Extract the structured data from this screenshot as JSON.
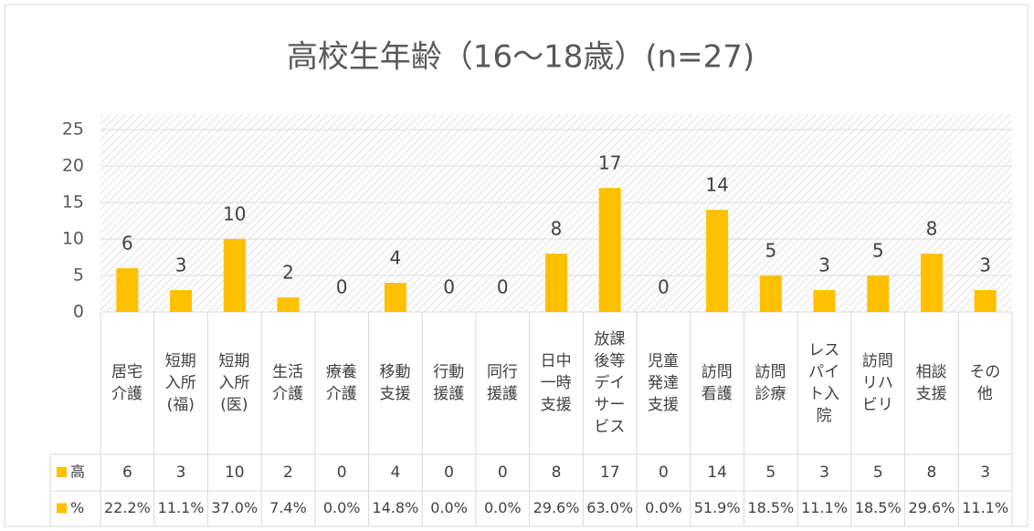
{
  "chart_data": {
    "type": "bar",
    "title": "高校生年齢（16〜18歳）(n=27)",
    "categories": [
      "居宅介護",
      "短期入所(福)",
      "短期入所(医)",
      "生活介護",
      "療養介護",
      "移動支援",
      "行動援護",
      "同行援護",
      "日中一時支援",
      "放課後等デイサービス",
      "児童発達支援",
      "訪問看護",
      "訪問診療",
      "レスパイト入院",
      "訪問リハビリ",
      "相談支援",
      "その他"
    ],
    "series": [
      {
        "name": "高",
        "color": "#ffc000",
        "values": [
          6,
          3,
          10,
          2,
          0,
          4,
          0,
          0,
          8,
          17,
          0,
          14,
          5,
          3,
          5,
          8,
          3
        ]
      },
      {
        "name": "%",
        "color": "#ffc000",
        "values": [
          22.2,
          11.1,
          37.0,
          7.4,
          0.0,
          14.8,
          0.0,
          0.0,
          29.6,
          63.0,
          0.0,
          51.9,
          18.5,
          11.1,
          18.5,
          29.6,
          11.1
        ],
        "value_labels": [
          "22.2%",
          "11.1%",
          "37.0%",
          "7.4%",
          "0.0%",
          "14.8%",
          "0.0%",
          "0.0%",
          "29.6%",
          "63.0%",
          "0.0%",
          "51.9%",
          "18.5%",
          "11.1%",
          "18.5%",
          "29.6%",
          "11.1%"
        ]
      }
    ],
    "ylim": [
      0,
      25
    ],
    "yticks": [
      0,
      5,
      10,
      15,
      20,
      25
    ],
    "grid": true
  }
}
